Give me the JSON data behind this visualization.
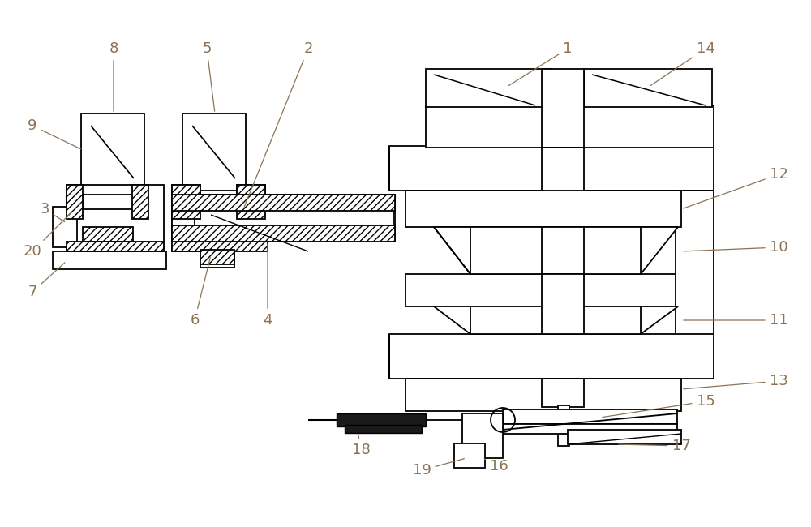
{
  "bg_color": "#ffffff",
  "line_color": "#000000",
  "label_color": "#8B7355",
  "fig_width": 10.0,
  "fig_height": 6.5,
  "dpi": 100
}
